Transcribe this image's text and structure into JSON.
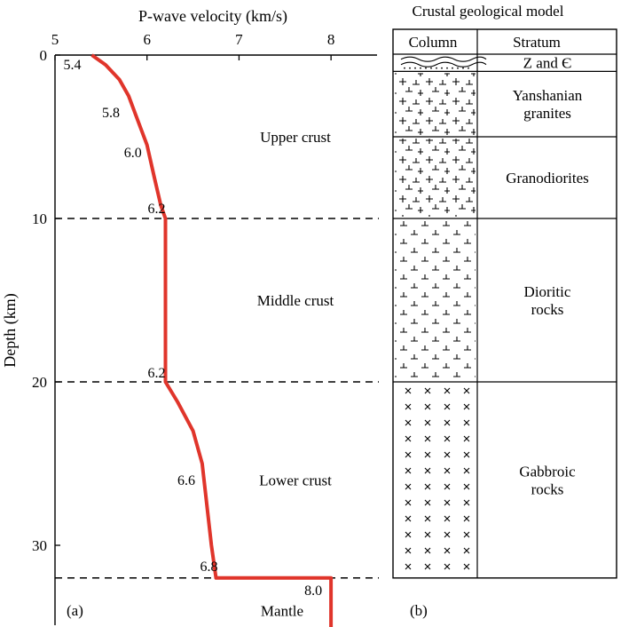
{
  "colors": {
    "profile": "#e0352b",
    "axis": "#000000",
    "boundary": "#000000"
  },
  "chart_data": {
    "type": "line",
    "panel_label": "(a)",
    "xlabel": "P-wave velocity (km/s)",
    "ylabel": "Depth (km)",
    "xlim": [
      5,
      8.5
    ],
    "ylim": [
      0,
      35
    ],
    "x_axis_position": "top",
    "y_inverted": true,
    "xticks": [
      5,
      6,
      7,
      8
    ],
    "yticks": [
      0,
      10,
      20,
      30
    ],
    "series": [
      {
        "points": [
          [
            5.4,
            0
          ],
          [
            5.55,
            0.6
          ],
          [
            5.7,
            1.5
          ],
          [
            5.8,
            2.5
          ],
          [
            5.9,
            4.0
          ],
          [
            6.0,
            5.5
          ],
          [
            6.08,
            7.5
          ],
          [
            6.15,
            9.2
          ],
          [
            6.2,
            10.0
          ],
          [
            6.2,
            20.0
          ],
          [
            6.33,
            21.2
          ],
          [
            6.5,
            23.0
          ],
          [
            6.6,
            25.0
          ],
          [
            6.65,
            27.5
          ],
          [
            6.7,
            30.0
          ],
          [
            6.75,
            32.0
          ],
          [
            8.0,
            32.0
          ],
          [
            8.0,
            35.0
          ]
        ]
      }
    ],
    "velocity_labels": [
      {
        "text": "5.4",
        "v": 5.4,
        "d": 0
      },
      {
        "text": "5.8",
        "v": 5.8,
        "d": 2.5
      },
      {
        "text": "6.0",
        "v": 6.0,
        "d": 5.5
      },
      {
        "text": "6.2",
        "v": 6.2,
        "d": 10.0
      },
      {
        "text": "6.2",
        "v": 6.2,
        "d": 20.0
      },
      {
        "text": "6.6",
        "v": 6.6,
        "d": 25.0
      },
      {
        "text": "6.8",
        "v": 6.75,
        "d": 32.0
      },
      {
        "text": "8.0",
        "v": 8.0,
        "d": 32.0
      }
    ],
    "boundaries_km": [
      10,
      20,
      32
    ],
    "layer_labels": [
      {
        "text": "Upper crust",
        "d": 5
      },
      {
        "text": "Middle crust",
        "d": 15
      },
      {
        "text": "Lower crust",
        "d": 26
      },
      {
        "text": "Mantle",
        "d": 34
      }
    ]
  },
  "geology": {
    "title": "Crustal geological model",
    "panel_label": "(b)",
    "column_header": "Column",
    "stratum_header": "Stratum",
    "strata": [
      {
        "label": "Z and Є",
        "top": 0,
        "bottom": 1,
        "pattern": "sediment"
      },
      {
        "lines": [
          "Yanshanian",
          "granites"
        ],
        "top": 1,
        "bottom": 5,
        "pattern": "granite"
      },
      {
        "label": "Granodiorites",
        "top": 5,
        "bottom": 10,
        "pattern": "granite"
      },
      {
        "lines": [
          "Dioritic",
          "rocks"
        ],
        "top": 10,
        "bottom": 20,
        "pattern": "diorite"
      },
      {
        "lines": [
          "Gabbroic",
          "rocks"
        ],
        "top": 20,
        "bottom": 32,
        "pattern": "gabbro"
      }
    ]
  }
}
